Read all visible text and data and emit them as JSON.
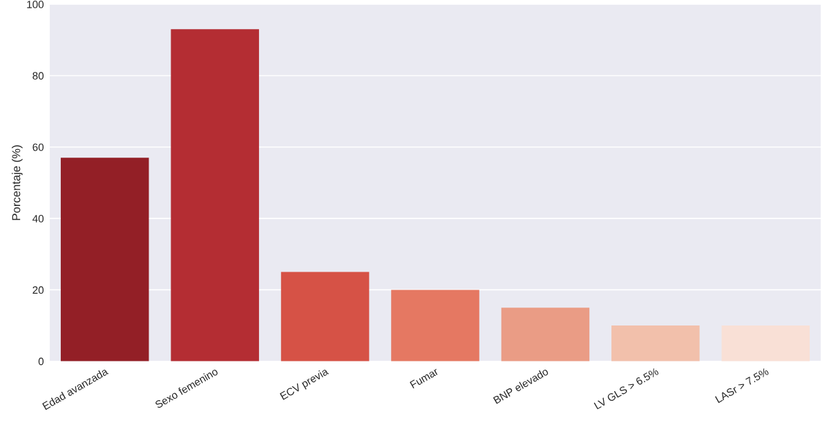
{
  "chart_data": {
    "type": "bar",
    "ylabel": "Porcentaje (%)",
    "categories": [
      "Edad avanzada",
      "Sexo femenino",
      "ECV previa",
      "Fumar",
      "BNP elevado",
      "LV GLS > 6.5%",
      "LASr > 7.5%"
    ],
    "values": [
      57,
      93,
      25,
      20,
      15,
      10,
      10
    ],
    "colors": [
      "#931f26",
      "#b42d33",
      "#d65246",
      "#e57862",
      "#ea9c85",
      "#f2c0ab",
      "#f9e0d6"
    ],
    "ylim": [
      0,
      100
    ],
    "yticks": [
      0,
      20,
      40,
      60,
      80,
      100
    ],
    "grid": "y",
    "legend": false
  }
}
